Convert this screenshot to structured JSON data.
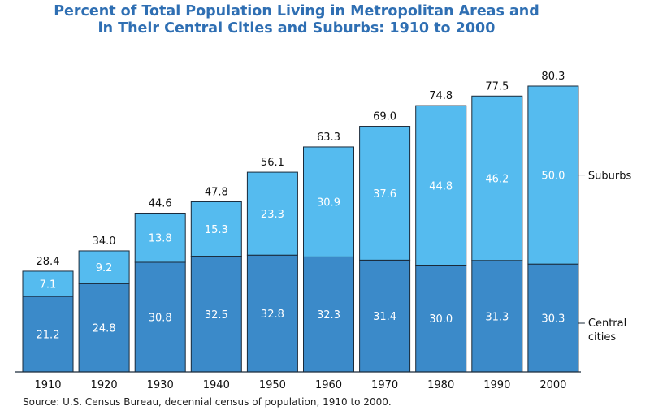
{
  "title": {
    "line1": "Percent of Total Population Living in Metropolitan Areas and",
    "line2": "in Their Central Cities and Suburbs:  1910 to 2000"
  },
  "source": "Source:  U.S. Census Bureau, decennial census of population, 1910 to 2000.",
  "colors": {
    "central_cities": "#3b8ac9",
    "suburbs": "#55bbef",
    "stroke": "#1a2a3a",
    "title": "#2f6fb3"
  },
  "chart_data": {
    "type": "bar",
    "stacked": true,
    "categories": [
      "1910",
      "1920",
      "1930",
      "1940",
      "1950",
      "1960",
      "1970",
      "1980",
      "1990",
      "2000"
    ],
    "series": [
      {
        "name": "Central cities",
        "values": [
          21.2,
          24.8,
          30.8,
          32.5,
          32.8,
          32.3,
          31.4,
          30.0,
          31.3,
          30.3
        ]
      },
      {
        "name": "Suburbs",
        "values": [
          7.1,
          9.2,
          13.8,
          15.3,
          23.3,
          30.9,
          37.6,
          44.8,
          46.2,
          50.0
        ]
      }
    ],
    "totals": [
      "28.4",
      "34.0",
      "44.6",
      "47.8",
      "56.1",
      "63.3",
      "69.0",
      "74.8",
      "77.5",
      "80.3"
    ],
    "labels": {
      "central_cities": [
        "21.2",
        "24.8",
        "30.8",
        "32.5",
        "32.8",
        "32.3",
        "31.4",
        "30.0",
        "31.3",
        "30.3"
      ],
      "suburbs": [
        "7.1",
        "9.2",
        "13.8",
        "15.3",
        "23.3",
        "30.9",
        "37.6",
        "44.8",
        "46.2",
        "50.0"
      ]
    },
    "legend": {
      "suburbs": "Suburbs",
      "central_line1": "Central",
      "central_line2": "cities"
    },
    "ylim": [
      0,
      80.3
    ],
    "grid": false,
    "legend_placement": "right"
  }
}
